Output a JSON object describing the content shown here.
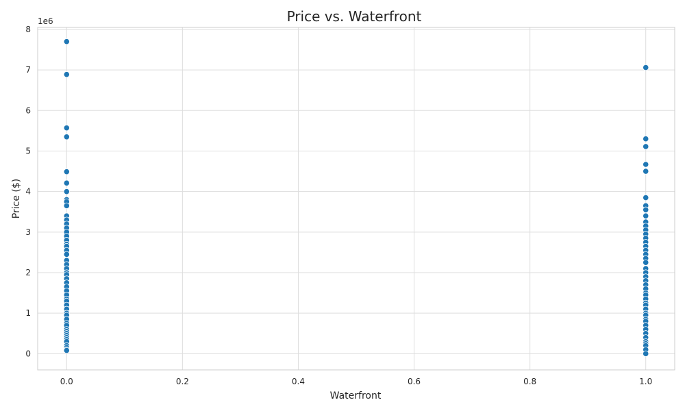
{
  "chart_data": {
    "type": "scatter",
    "title": "Price vs. Waterfront",
    "xlabel": "Waterfront",
    "ylabel": "Price ($)",
    "y_offset_label": "1e6",
    "xlim": [
      -0.05,
      1.05
    ],
    "ylim": [
      -0.4,
      8.05
    ],
    "x_ticks": [
      0.0,
      0.2,
      0.4,
      0.6,
      0.8,
      1.0
    ],
    "x_tick_labels": [
      "0.0",
      "0.2",
      "0.4",
      "0.6",
      "0.8",
      "1.0"
    ],
    "y_ticks": [
      0,
      1,
      2,
      3,
      4,
      5,
      6,
      7,
      8
    ],
    "y_tick_labels": [
      "0",
      "1",
      "2",
      "3",
      "4",
      "5",
      "6",
      "7",
      "8"
    ],
    "y_unit_multiplier": 1000000,
    "grid": true,
    "point_color": "#1f77b4",
    "series": [
      {
        "x": 0,
        "y": [
          7.7,
          6.89,
          5.57,
          5.35,
          4.49,
          4.21,
          4.0,
          3.8,
          3.75,
          3.65,
          3.4,
          3.3,
          3.2,
          3.1,
          3.0,
          2.9,
          2.8,
          2.7,
          2.65,
          2.55,
          2.45,
          2.3,
          2.2,
          2.1,
          2.0,
          1.95,
          1.85,
          1.75,
          1.65,
          1.55,
          1.45,
          1.35,
          1.3,
          1.2,
          1.1,
          1.0,
          0.95,
          0.85,
          0.75,
          0.7,
          0.6,
          0.55,
          0.5,
          0.45,
          0.4,
          0.35,
          0.3,
          0.2,
          0.15,
          0.1,
          0.08
        ]
      },
      {
        "x": 1,
        "y": [
          7.06,
          5.3,
          5.11,
          4.67,
          4.5,
          3.85,
          3.65,
          3.55,
          3.4,
          3.25,
          3.15,
          3.05,
          2.95,
          2.85,
          2.75,
          2.65,
          2.55,
          2.45,
          2.35,
          2.25,
          2.1,
          2.0,
          1.9,
          1.8,
          1.7,
          1.6,
          1.5,
          1.45,
          1.35,
          1.25,
          1.2,
          1.1,
          1.0,
          0.95,
          0.85,
          0.8,
          0.7,
          0.6,
          0.5,
          0.4,
          0.3,
          0.25,
          0.2,
          0.1,
          0.0
        ]
      }
    ]
  }
}
